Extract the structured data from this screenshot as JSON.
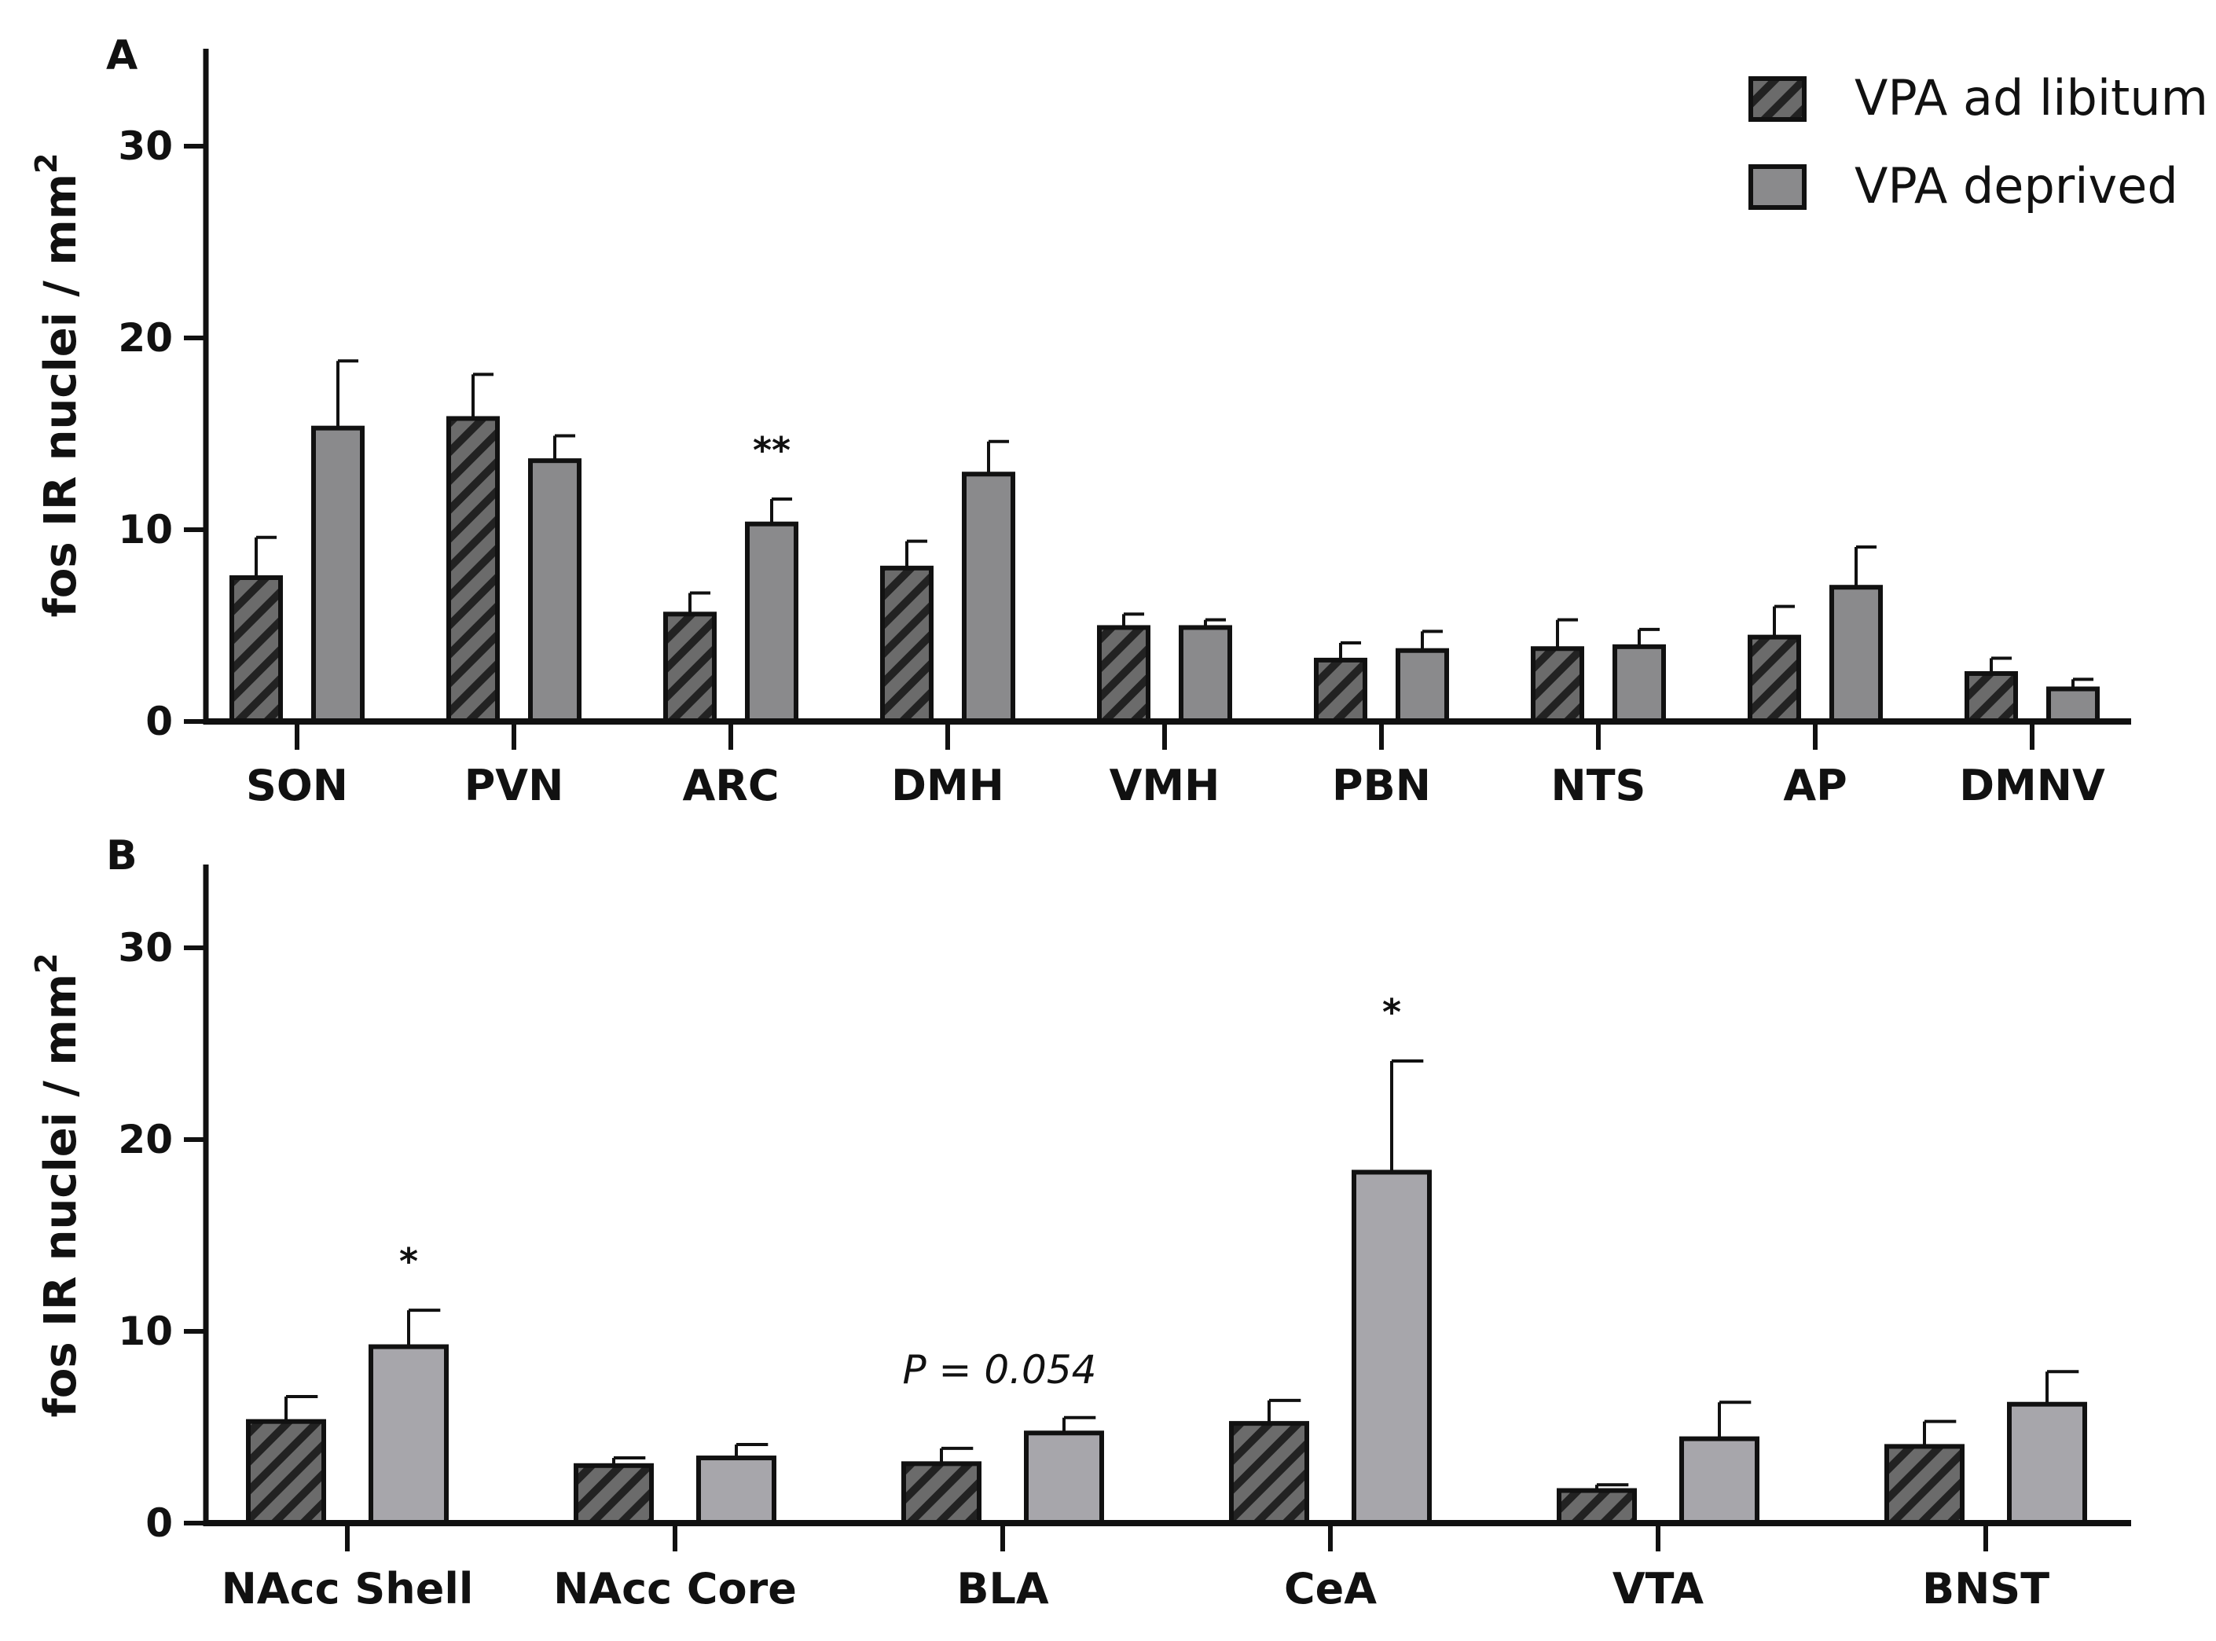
{
  "legend": {
    "items": [
      {
        "name": "VPA ad libitum",
        "pattern": "hatched",
        "color": "#6b6b6b"
      },
      {
        "name": "VPA deprived",
        "pattern": "solid",
        "color": "#8a8a8c"
      }
    ]
  },
  "colors": {
    "hatch_bg": "#6b6b6b",
    "hatch_line": "#222222",
    "deprived_A": "#8a8a8c",
    "deprived_B": "#a7a6ab",
    "axis": "#111111"
  },
  "chart_data": [
    {
      "type": "bar",
      "panel": "A",
      "ylabel": "fos IR nuclei / mm",
      "ylabel_sup": "2",
      "ylim": [
        0,
        35
      ],
      "yticks": [
        0,
        10,
        20,
        30
      ],
      "categories": [
        "SON",
        "PVN",
        "ARC",
        "DMH",
        "VMH",
        "PBN",
        "NTS",
        "AP",
        "DMNV"
      ],
      "series": [
        {
          "name": "VPA ad libitum",
          "values": [
            7.5,
            15.8,
            5.6,
            8.0,
            4.9,
            3.2,
            3.8,
            4.4,
            2.5
          ],
          "errors": [
            2.1,
            2.3,
            1.1,
            1.4,
            0.7,
            0.9,
            1.5,
            1.6,
            0.8
          ]
        },
        {
          "name": "VPA deprived",
          "values": [
            15.3,
            13.6,
            10.3,
            12.9,
            4.9,
            3.7,
            3.9,
            7.0,
            1.7
          ],
          "errors": [
            3.5,
            1.3,
            1.3,
            1.7,
            0.4,
            1.0,
            0.9,
            2.1,
            0.5
          ]
        }
      ],
      "annotations": [
        {
          "category": "ARC",
          "text": "**"
        }
      ]
    },
    {
      "type": "bar",
      "panel": "B",
      "ylabel": "fos IR nuclei / mm",
      "ylabel_sup": "2",
      "ylim": [
        0,
        35
      ],
      "yticks": [
        0,
        10,
        20,
        30
      ],
      "categories": [
        "NAcc Shell",
        "NAcc Core",
        "BLA",
        "CeA",
        "VTA",
        "BNST"
      ],
      "series": [
        {
          "name": "VPA ad libitum",
          "values": [
            5.3,
            3.0,
            3.1,
            5.2,
            1.7,
            4.0
          ],
          "errors": [
            1.3,
            0.4,
            0.8,
            1.2,
            0.3,
            1.3
          ]
        },
        {
          "name": "VPA deprived",
          "values": [
            9.2,
            3.4,
            4.7,
            18.3,
            4.4,
            6.2
          ],
          "errors": [
            1.9,
            0.7,
            0.8,
            5.8,
            1.9,
            1.7
          ]
        }
      ],
      "annotations": [
        {
          "category": "NAcc Shell",
          "text": "*",
          "style": "bold"
        },
        {
          "category": "BLA",
          "text": "P = 0.054",
          "style": "italic"
        },
        {
          "category": "CeA",
          "text": "*",
          "style": "bold"
        }
      ]
    }
  ]
}
